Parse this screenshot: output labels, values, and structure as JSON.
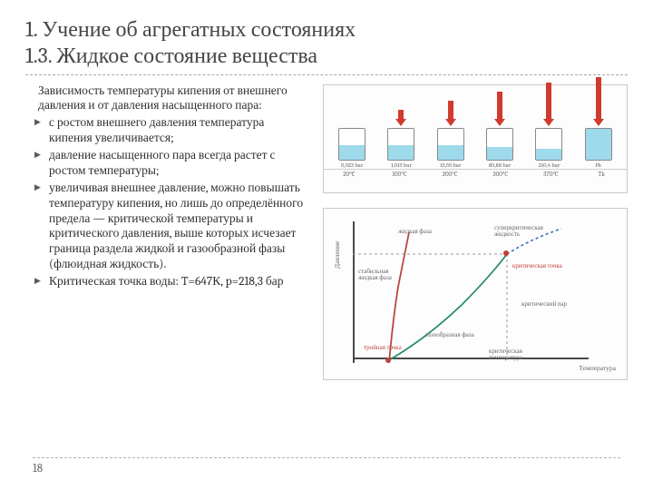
{
  "title_line1": "1. Учение об агрегатных состояниях",
  "title_line2": "1.3. Жидкое состояние вещества",
  "intro": "Зависимость температуры кипения от внешнего давления и от давления насыщенного пара:",
  "bullets": [
    "с ростом внешнего давления температура кипения увеличивается;",
    "давление насыщенного пара всегда растет с ростом температуры;",
    "увеличивая внешнее давление, можно повышать температуру кипения, но лишь до определённого предела — критической температуры и критического давления, выше которых исчезает граница раздела жидкой и газообразной фазы (флюидная жидкость).",
    "Критическая точка воды: T=647К, p=218,3 бар"
  ],
  "page": "18",
  "fig1": {
    "arrow_color": "#d13a2e",
    "liq_color": "#9fdaec",
    "tubes": [
      {
        "p": "0,023 bar",
        "t": "20°C",
        "liq_h": 16,
        "arrow_h": 0
      },
      {
        "p": "1,013 bar",
        "t": "100°C",
        "liq_h": 16,
        "arrow_h": 18
      },
      {
        "p": "15,55 bar",
        "t": "200°C",
        "liq_h": 16,
        "arrow_h": 28
      },
      {
        "p": "85,88 bar",
        "t": "300°C",
        "liq_h": 14,
        "arrow_h": 38
      },
      {
        "p": "210,4 bar",
        "t": "370°C",
        "liq_h": 12,
        "arrow_h": 48
      },
      {
        "p": "Pk",
        "t": "Tk",
        "liq_h": 36,
        "arrow_h": 54
      }
    ]
  },
  "fig2": {
    "ylabel": "Давление",
    "xlabel": "Температура",
    "curve1_color": "#b9473c",
    "curve2_color": "#2c8c6c",
    "curve3_color": "#3b6fb5",
    "triple_color": "#b9473c",
    "crit_color": "#c23a34",
    "labels": {
      "liquid": "жидкая фаза",
      "solid": "стабильная жидкая фаза",
      "gas": "газообразная фаза",
      "super": "суперкритическая жидкость",
      "triple": "тройная точка",
      "crit": "критическая точка",
      "critpar": "критический пар",
      "critT": "критическая температура"
    }
  }
}
